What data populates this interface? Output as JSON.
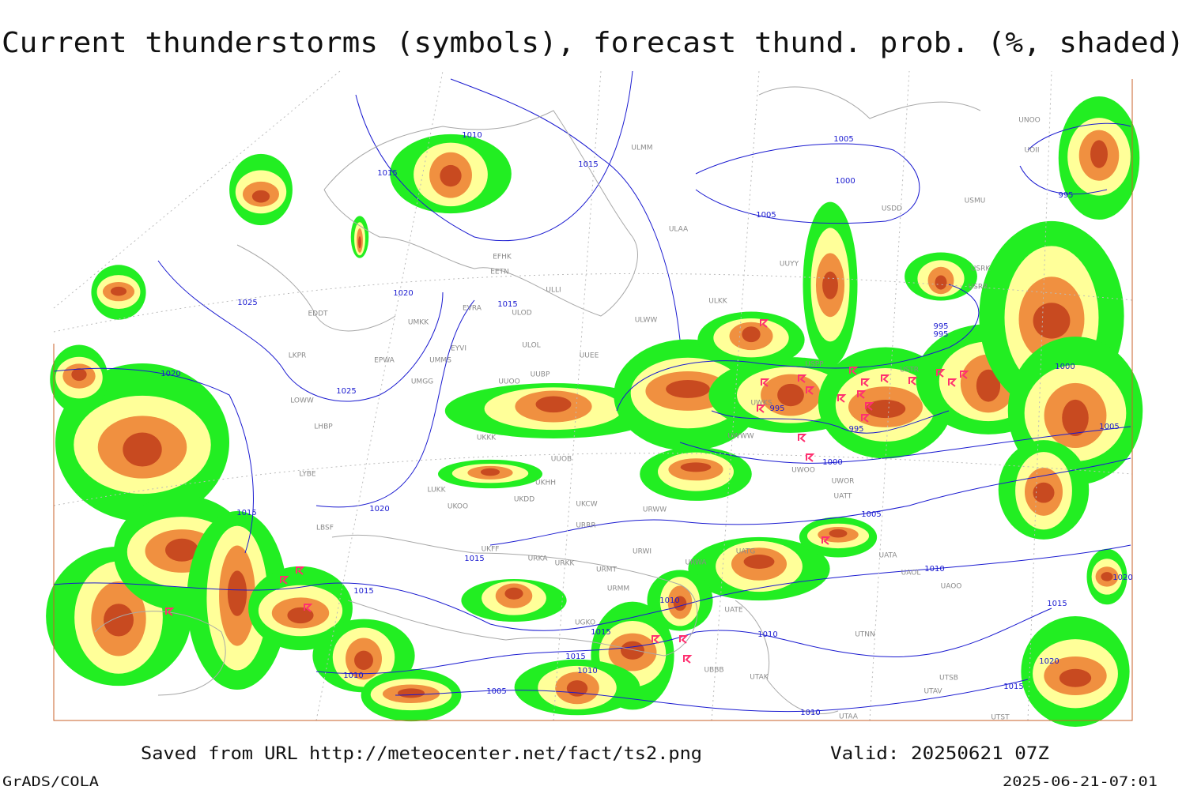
{
  "title": "Current thunderstorms (symbols), forecast thund. prob. (%, shaded)",
  "footer": {
    "source": "Saved from URL http://meteocenter.net/fact/ts2.png",
    "valid": "Valid: 20250621 07Z",
    "credit": "GrADS/COLA",
    "timestamp": "2025-06-21-07:01"
  },
  "isobar_labels": [
    "1010",
    "1015",
    "1015",
    "1005",
    "1000",
    "1005",
    "995",
    "1025",
    "1020",
    "1015",
    "995",
    "995",
    "1000",
    "1020",
    "1025",
    "995",
    "995",
    "1005",
    "1000",
    "1020",
    "1015",
    "1005",
    "1015",
    "1015",
    "1010",
    "1010",
    "1015",
    "1010",
    "1015",
    "1010",
    "1010",
    "1005",
    "1010",
    "1015",
    "1020",
    "1015",
    "1020"
  ],
  "station_labels": [
    "ULMM",
    "ULAA",
    "EFHK",
    "EETN",
    "EVRA",
    "ULOD",
    "ULLI",
    "ULWW",
    "EDDT",
    "UMKK",
    "EYVI",
    "ULOL",
    "UUEE",
    "EPWA",
    "UMMS",
    "LKPR",
    "UMGG",
    "UUOO",
    "UUBP",
    "LOWW",
    "LHBP",
    "UKKK",
    "UUOB",
    "LYBE",
    "LUKK",
    "UKOO",
    "UKHH",
    "UKDD",
    "UKCW",
    "URWW",
    "URRR",
    "LBSF",
    "UKFF",
    "URKA",
    "URKK",
    "URWI",
    "URMT",
    "URMM",
    "URWA",
    "UATG",
    "UATA",
    "UAOL",
    "UAOO",
    "UGKO",
    "UATE",
    "UTNN",
    "UBBB",
    "UTAK",
    "UTSB",
    "UTAV",
    "UTAA",
    "UTST",
    "UWOO",
    "UWOR",
    "UATT",
    "UWWW",
    "UWKS",
    "USPP",
    "UUYY",
    "ULKK",
    "USDD",
    "USMU",
    "USRK",
    "USRR",
    "USTR",
    "UNOO",
    "UOII"
  ]
}
